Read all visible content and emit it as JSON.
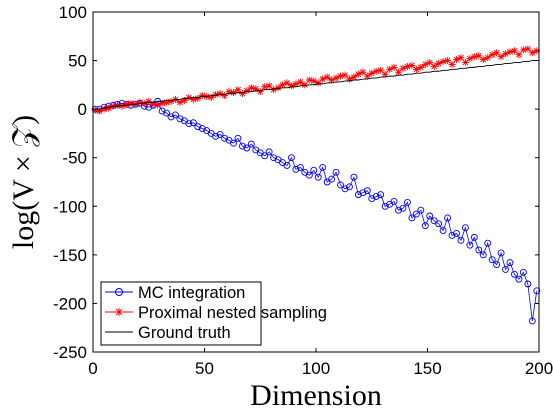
{
  "chart_data": {
    "type": "line",
    "xlabel": "Dimension",
    "ylabel": "log(V × 𝒵)",
    "xlim": [
      0,
      200
    ],
    "ylim": [
      -250,
      100
    ],
    "xticks": [
      0,
      50,
      100,
      150,
      200
    ],
    "yticks": [
      -250,
      -200,
      -150,
      -100,
      -50,
      0,
      50,
      100
    ],
    "xtick_labels": [
      "0",
      "50",
      "100",
      "150",
      "200"
    ],
    "ytick_labels": [
      "-250",
      "-200",
      "-150",
      "-100",
      "-50",
      "0",
      "50",
      "100"
    ],
    "grid": false,
    "legend_position": "bottom-left",
    "x": [
      1,
      3,
      5,
      7,
      9,
      11,
      13,
      15,
      17,
      19,
      21,
      23,
      25,
      27,
      29,
      31,
      33,
      35,
      37,
      39,
      41,
      43,
      45,
      47,
      49,
      51,
      53,
      55,
      57,
      59,
      61,
      63,
      65,
      67,
      69,
      71,
      73,
      75,
      77,
      79,
      81,
      83,
      85,
      87,
      89,
      91,
      93,
      95,
      97,
      99,
      101,
      103,
      105,
      107,
      109,
      111,
      113,
      115,
      117,
      119,
      121,
      123,
      125,
      127,
      129,
      131,
      133,
      135,
      137,
      139,
      141,
      143,
      145,
      147,
      149,
      151,
      153,
      155,
      157,
      159,
      161,
      163,
      165,
      167,
      169,
      171,
      173,
      175,
      177,
      179,
      181,
      183,
      185,
      187,
      189,
      191,
      193,
      195,
      197,
      199
    ],
    "series": [
      {
        "name": "MC integration",
        "color": "#0000ff",
        "marker": "circle",
        "values": [
          0,
          0,
          2,
          3,
          4,
          5,
          6,
          5,
          4,
          5,
          6,
          3,
          2,
          4,
          8,
          -2,
          -4,
          -8,
          -6,
          -10,
          -12,
          -15,
          -14,
          -18,
          -20,
          -22,
          -25,
          -28,
          -26,
          -30,
          -32,
          -35,
          -30,
          -38,
          -40,
          -36,
          -42,
          -45,
          -48,
          -44,
          -50,
          -52,
          -55,
          -58,
          -50,
          -62,
          -60,
          -65,
          -68,
          -63,
          -70,
          -60,
          -75,
          -72,
          -65,
          -78,
          -82,
          -80,
          -70,
          -88,
          -86,
          -84,
          -92,
          -90,
          -88,
          -100,
          -98,
          -95,
          -104,
          -102,
          -96,
          -112,
          -108,
          -104,
          -120,
          -110,
          -115,
          -118,
          -125,
          -112,
          -130,
          -128,
          -135,
          -122,
          -140,
          -132,
          -145,
          -150,
          -138,
          -155,
          -160,
          -148,
          -165,
          -158,
          -170,
          -175,
          -168,
          -180,
          -218,
          -187
        ]
      },
      {
        "name": "Proximal nested sampling",
        "color": "#ff0000",
        "marker": "asterisk",
        "values": [
          -1,
          -2,
          0,
          1,
          3,
          4,
          3,
          5,
          6,
          5,
          7,
          6,
          8,
          5,
          4,
          6,
          7,
          8,
          10,
          7,
          9,
          12,
          10,
          11,
          14,
          13,
          12,
          15,
          16,
          14,
          18,
          17,
          20,
          16,
          19,
          22,
          21,
          18,
          23,
          24,
          20,
          22,
          25,
          27,
          24,
          26,
          28,
          25,
          30,
          29,
          27,
          31,
          33,
          30,
          32,
          34,
          35,
          31,
          33,
          36,
          38,
          34,
          37,
          39,
          40,
          36,
          41,
          43,
          38,
          42,
          44,
          45,
          41,
          43,
          46,
          48,
          44,
          47,
          49,
          50,
          46,
          51,
          53,
          48,
          52,
          54,
          55,
          51,
          53,
          56,
          58,
          54,
          57,
          59,
          60,
          56,
          61,
          62,
          58,
          60
        ]
      },
      {
        "name": "Ground truth",
        "color": "#000000",
        "marker": "none",
        "values": [
          0,
          0,
          1,
          2,
          3,
          3,
          4,
          4,
          5,
          5,
          6,
          6,
          7,
          7,
          8,
          8,
          9,
          9,
          10,
          10,
          11,
          11,
          12,
          12,
          13,
          13,
          14,
          14,
          15,
          15,
          16,
          16,
          17,
          17,
          18,
          18,
          19,
          19,
          20,
          20,
          21,
          21,
          22,
          22,
          23,
          23,
          24,
          24,
          25,
          25,
          26,
          26,
          27,
          27,
          28,
          28,
          29,
          29,
          30,
          30,
          31,
          31,
          32,
          32,
          33,
          33,
          34,
          34,
          35,
          35,
          36,
          36,
          37,
          37,
          38,
          38,
          39,
          39,
          40,
          40,
          41,
          41,
          42,
          42,
          43,
          43,
          44,
          44,
          45,
          45,
          46,
          46,
          47,
          47,
          48,
          48,
          49,
          49,
          50,
          50
        ]
      }
    ]
  }
}
